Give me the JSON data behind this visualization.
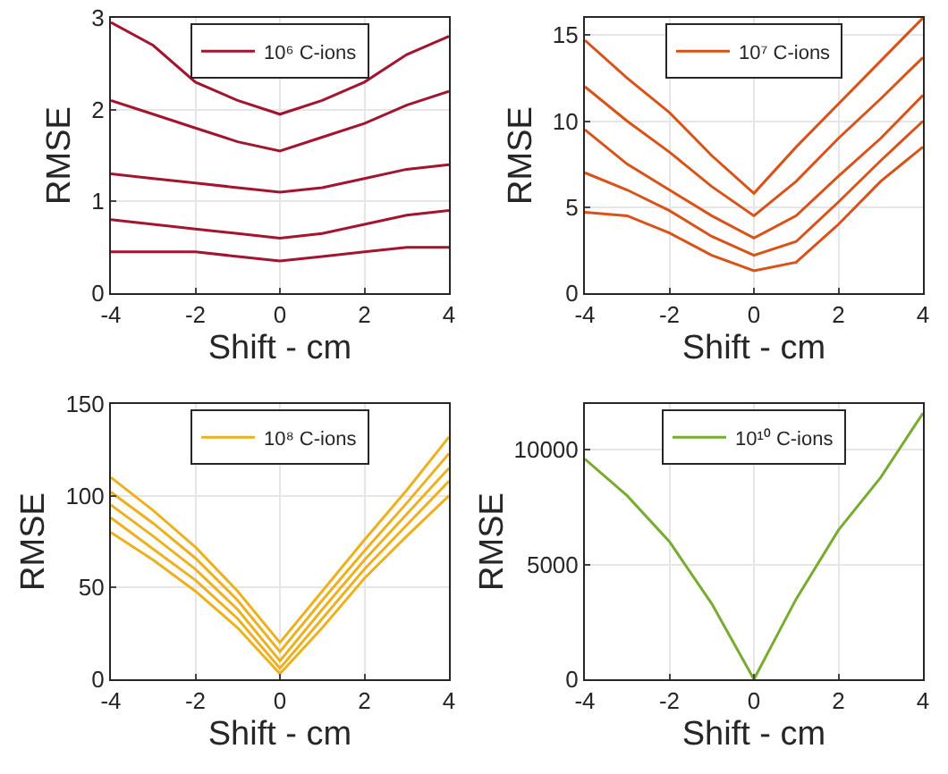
{
  "chart_data": [
    {
      "type": "line",
      "xlabel": "Shift - cm",
      "ylabel": "RMSE",
      "x": [
        -4,
        -3,
        -2,
        -1,
        0,
        1,
        2,
        3,
        4
      ],
      "xlim": [
        -4,
        4
      ],
      "xticks": [
        -4,
        -2,
        0,
        2,
        4
      ],
      "ylim": [
        0,
        3
      ],
      "yticks": [
        0,
        1,
        2,
        3
      ],
      "grid": true,
      "legend": "top",
      "marker": "none",
      "line_style": "solid",
      "series": [
        {
          "name": "10⁶ C-ions",
          "color": "#a2142f",
          "values": [
            1.3,
            1.25,
            1.2,
            1.15,
            1.1,
            1.15,
            1.25,
            1.35,
            1.4
          ]
        },
        {
          "color": "#a2142f",
          "values": [
            0.45,
            0.45,
            0.45,
            0.4,
            0.35,
            0.4,
            0.45,
            0.5,
            0.5
          ]
        },
        {
          "color": "#a2142f",
          "values": [
            0.8,
            0.75,
            0.7,
            0.65,
            0.6,
            0.65,
            0.75,
            0.85,
            0.9
          ]
        },
        {
          "color": "#a2142f",
          "values": [
            2.1,
            1.95,
            1.8,
            1.65,
            1.55,
            1.7,
            1.85,
            2.05,
            2.2
          ]
        },
        {
          "color": "#a2142f",
          "values": [
            2.95,
            2.7,
            2.3,
            2.1,
            1.95,
            2.1,
            2.3,
            2.6,
            2.8
          ]
        }
      ]
    },
    {
      "type": "line",
      "xlabel": "Shift - cm",
      "ylabel": "RMSE",
      "x": [
        -4,
        -3,
        -2,
        -1,
        0,
        1,
        2,
        3,
        4
      ],
      "xlim": [
        -4,
        4
      ],
      "xticks": [
        -4,
        -2,
        0,
        2,
        4
      ],
      "ylim": [
        0,
        16
      ],
      "yticks": [
        0,
        5,
        10,
        15
      ],
      "grid": true,
      "legend": "top",
      "marker": "none",
      "line_style": "solid",
      "series": [
        {
          "name": "10⁷ C-ions",
          "color": "#d95319",
          "values": [
            9.5,
            7.5,
            6,
            4.5,
            3.2,
            4.5,
            6.8,
            9,
            11.5
          ]
        },
        {
          "color": "#d95319",
          "values": [
            4.7,
            4.5,
            3.5,
            2.2,
            1.3,
            1.8,
            4,
            6.5,
            8.5
          ]
        },
        {
          "color": "#d95319",
          "values": [
            7,
            6,
            4.8,
            3.3,
            2.2,
            3,
            5.3,
            7.7,
            10
          ]
        },
        {
          "color": "#d95319",
          "values": [
            12,
            10,
            8.2,
            6.2,
            4.5,
            6.5,
            9,
            11.3,
            13.7
          ]
        },
        {
          "color": "#d95319",
          "values": [
            14.7,
            12.5,
            10.5,
            8,
            5.8,
            8.5,
            11,
            13.5,
            16
          ]
        }
      ]
    },
    {
      "type": "line",
      "xlabel": "Shift - cm",
      "ylabel": "RMSE",
      "x": [
        -4,
        -3,
        -2,
        -1,
        0,
        1,
        2,
        3,
        4
      ],
      "xlim": [
        -4,
        4
      ],
      "xticks": [
        -4,
        -2,
        0,
        2,
        4
      ],
      "ylim": [
        0,
        150
      ],
      "yticks": [
        0,
        50,
        100,
        150
      ],
      "grid": true,
      "legend": "top",
      "marker": "none",
      "line_style": "solid",
      "series": [
        {
          "name": "10⁸ C-ions",
          "color": "#edb120",
          "values": [
            95,
            78,
            60,
            38,
            10,
            38,
            65,
            90,
            115
          ]
        },
        {
          "color": "#edb120",
          "values": [
            80,
            65,
            48,
            28,
            3,
            28,
            55,
            78,
            100
          ]
        },
        {
          "color": "#edb120",
          "values": [
            88,
            71,
            54,
            33,
            6,
            33,
            60,
            84,
            108
          ]
        },
        {
          "color": "#edb120",
          "values": [
            102,
            85,
            66,
            43,
            15,
            43,
            70,
            96,
            123
          ]
        },
        {
          "color": "#edb120",
          "values": [
            110,
            92,
            72,
            48,
            20,
            48,
            76,
            103,
            132
          ]
        }
      ]
    },
    {
      "type": "line",
      "xlabel": "Shift - cm",
      "ylabel": "RMSE",
      "x": [
        -4,
        -3,
        -2,
        -1,
        0,
        1,
        2,
        3,
        4
      ],
      "xlim": [
        -4,
        4
      ],
      "xticks": [
        -4,
        -2,
        0,
        2,
        4
      ],
      "ylim": [
        0,
        12000
      ],
      "yticks": [
        0,
        5000,
        10000
      ],
      "grid": true,
      "legend": "top",
      "marker": "none",
      "line_style": "solid",
      "series": [
        {
          "name": "10¹⁰ C-ions",
          "color": "#77ac30",
          "values": [
            9600,
            8000,
            6000,
            3300,
            0,
            3500,
            6500,
            8800,
            11600
          ]
        }
      ]
    }
  ]
}
